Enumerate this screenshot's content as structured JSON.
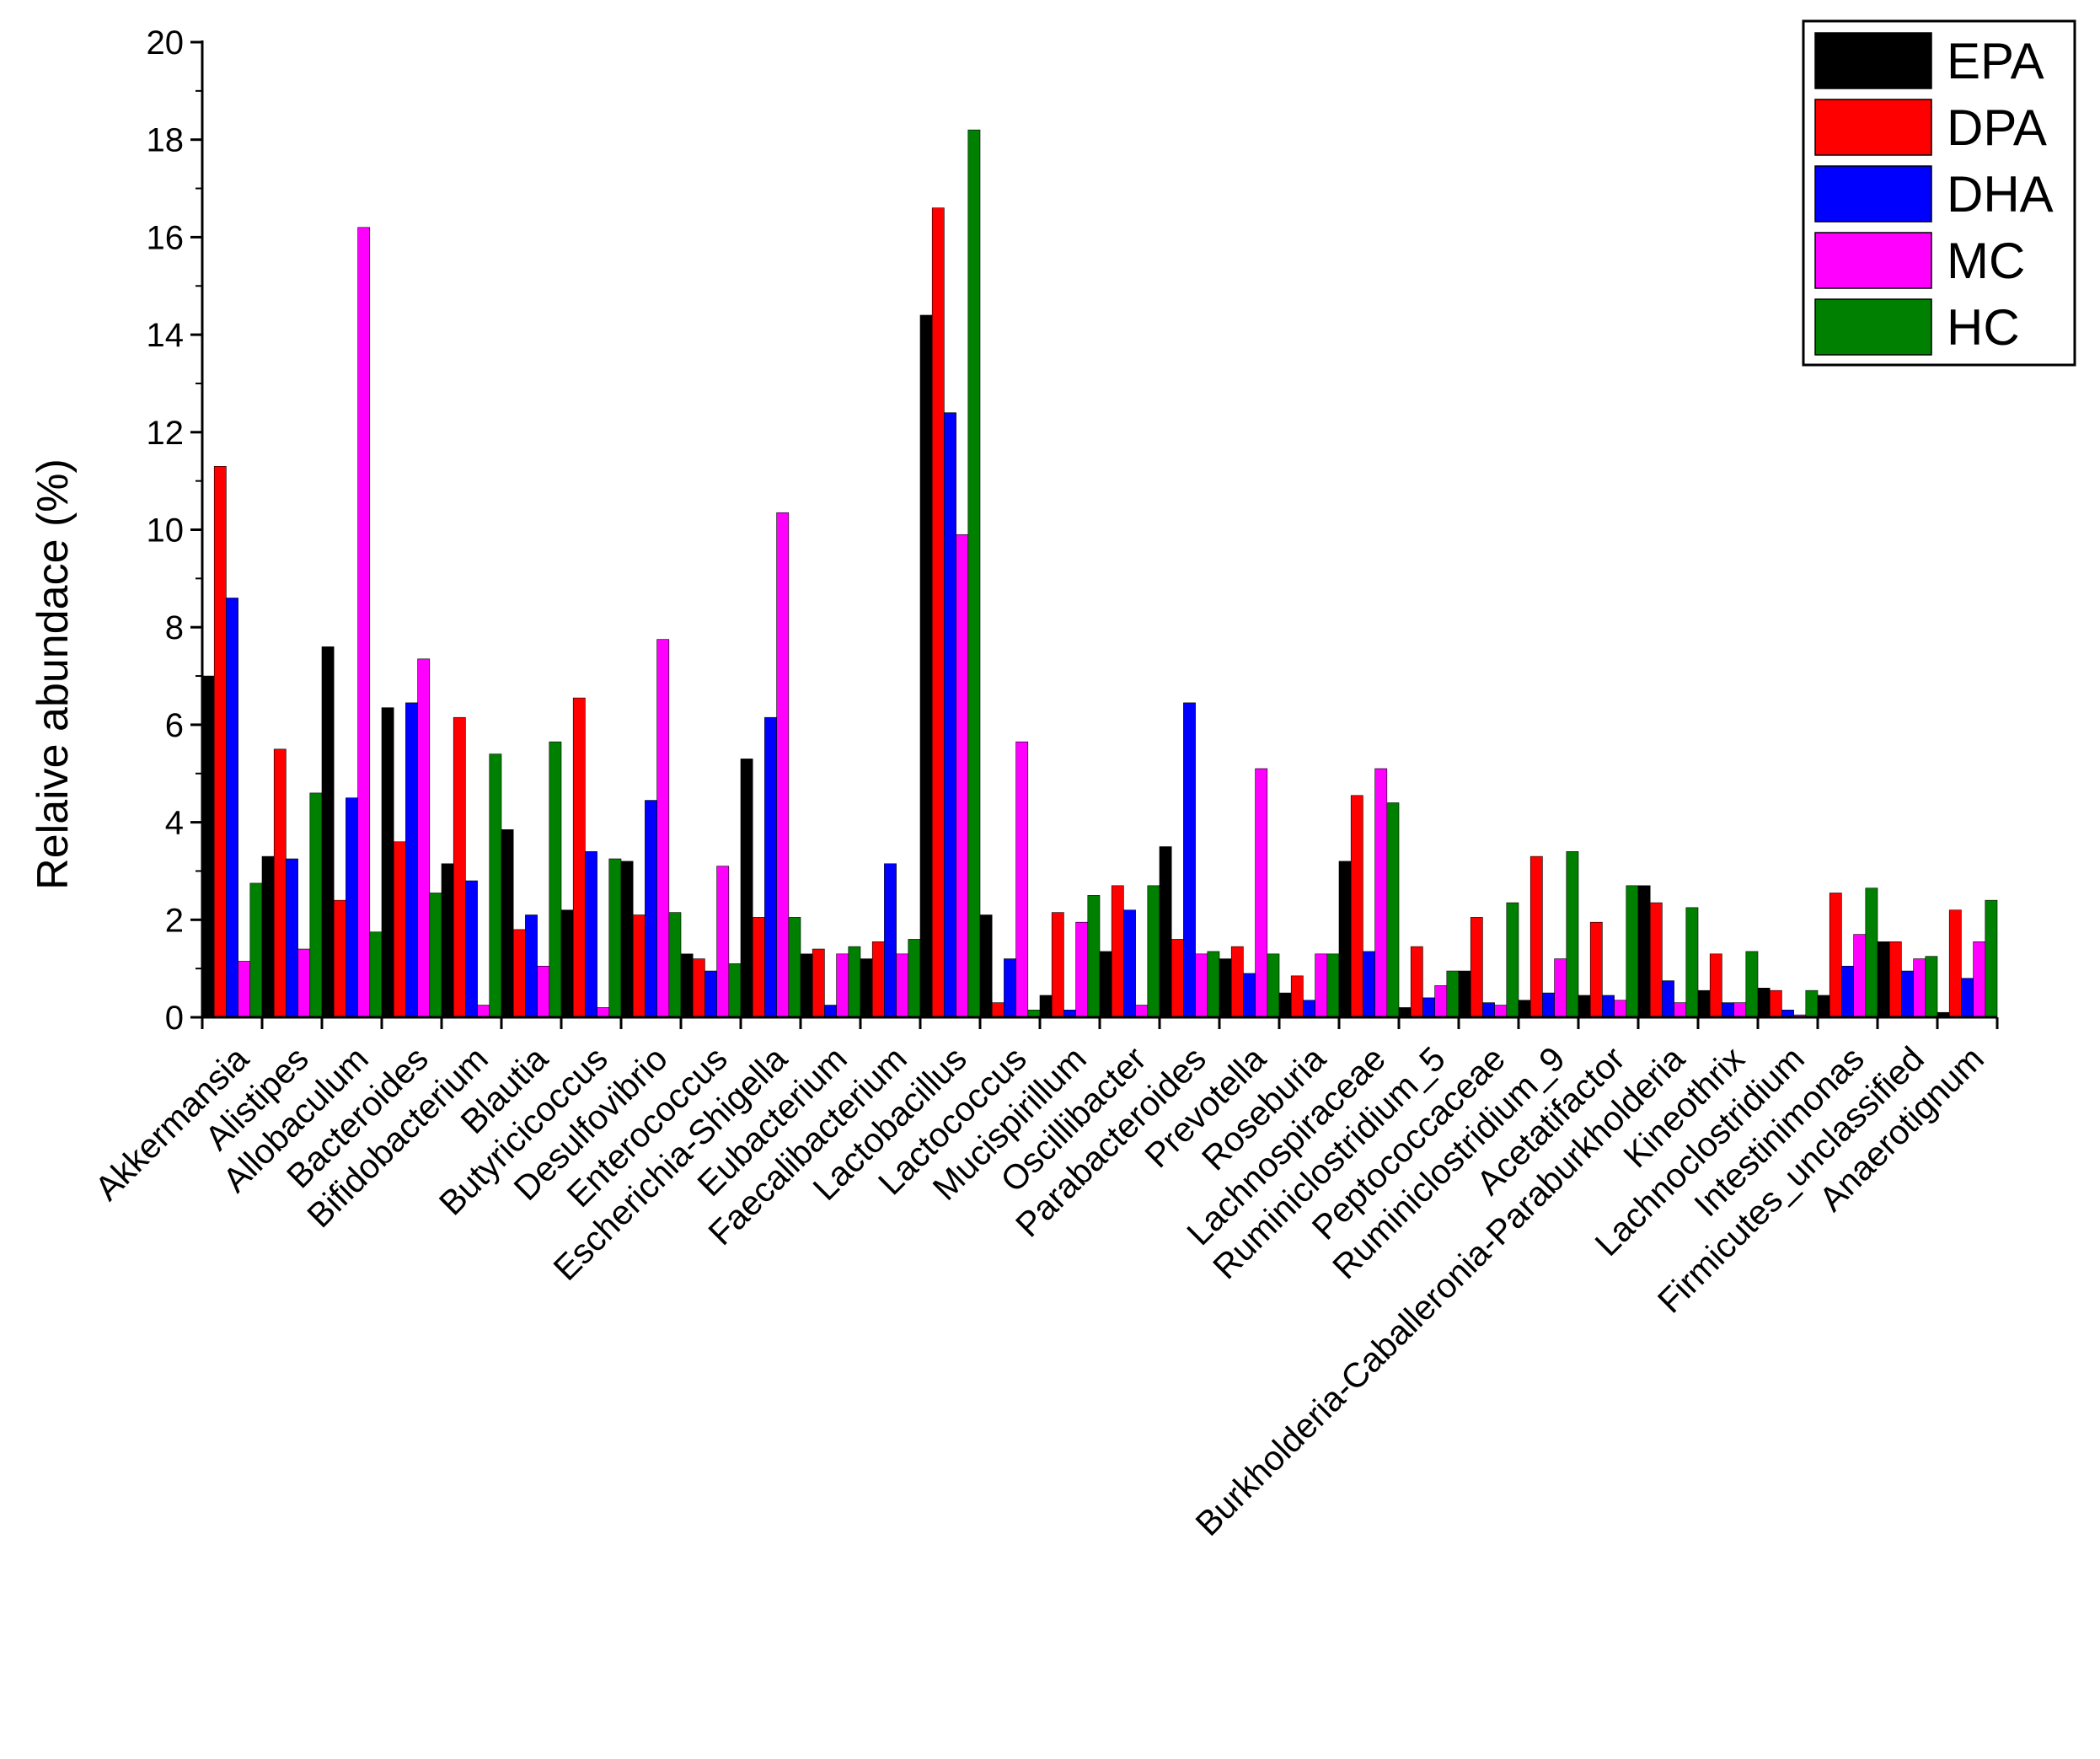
{
  "chart_data": {
    "type": "bar",
    "title": "",
    "xlabel": "",
    "ylabel": "Relaive abundace (%)",
    "ylim": [
      0,
      20
    ],
    "yticks": [
      0,
      2,
      4,
      6,
      8,
      10,
      12,
      14,
      16,
      18,
      20
    ],
    "legend_position": "top-right",
    "categories": [
      "Akkermansia",
      "Alistipes",
      "Allobaculum",
      "Bacteroides",
      "Bifidobacterium",
      "Blautia",
      "Butyricicoccus",
      "Desulfovibrio",
      "Enterococcus",
      "Escherichia-Shigella",
      "Eubacterium",
      "Faecalibacterium",
      "Lactobacillus",
      "Lactococcus",
      "Mucispirillum",
      "Oscillibacter",
      "Parabacteroides",
      "Prevotella",
      "Roseburia",
      "Lachnospiraceae",
      "Ruminiclostridium_5",
      "Peptococcaceae",
      "Ruminiclostridium_9",
      "Acetatifactor",
      "Burkholderia-Caballeronia-Paraburkholderia",
      "Kineothrix",
      "Lachnoclostridium",
      "Intestinimonas",
      "Firmicutes_unclassified",
      "Anaerotignum"
    ],
    "series": [
      {
        "name": "EPA",
        "color": "#000000",
        "values": [
          7.0,
          3.3,
          7.6,
          6.35,
          3.15,
          3.85,
          2.2,
          3.2,
          1.3,
          5.3,
          1.3,
          1.2,
          14.4,
          2.1,
          0.45,
          1.35,
          3.5,
          1.2,
          0.5,
          3.2,
          0.2,
          0.95,
          0.35,
          0.45,
          2.7,
          0.55,
          0.6,
          0.45,
          1.55,
          0.1
        ]
      },
      {
        "name": "DPA",
        "color": "#ff0000",
        "values": [
          11.3,
          5.5,
          2.4,
          3.6,
          6.15,
          1.8,
          6.55,
          2.1,
          1.2,
          2.05,
          1.4,
          1.55,
          16.6,
          0.3,
          2.15,
          2.7,
          1.6,
          1.45,
          0.85,
          4.55,
          1.45,
          2.05,
          3.3,
          1.95,
          2.35,
          1.3,
          0.55,
          2.55,
          1.55,
          2.2
        ]
      },
      {
        "name": "DHA",
        "color": "#0000ff",
        "values": [
          8.6,
          3.25,
          4.5,
          6.45,
          2.8,
          2.1,
          3.4,
          4.45,
          0.95,
          6.15,
          0.25,
          3.15,
          12.4,
          1.2,
          0.15,
          2.2,
          6.45,
          0.9,
          0.35,
          1.35,
          0.4,
          0.3,
          0.5,
          0.45,
          0.75,
          0.3,
          0.15,
          1.05,
          0.95,
          0.8
        ]
      },
      {
        "name": "MC",
        "color": "#ff00ff",
        "values": [
          1.15,
          1.4,
          16.2,
          7.35,
          0.25,
          1.05,
          0.2,
          7.75,
          3.1,
          10.35,
          1.3,
          1.3,
          9.9,
          5.65,
          1.95,
          0.25,
          1.3,
          5.1,
          1.3,
          5.1,
          0.65,
          0.25,
          1.2,
          0.35,
          0.3,
          0.3,
          0.05,
          1.7,
          1.2,
          1.55
        ]
      },
      {
        "name": "HC",
        "color": "#008000",
        "values": [
          2.75,
          4.6,
          1.75,
          2.55,
          5.4,
          5.65,
          3.25,
          2.15,
          1.1,
          2.05,
          1.45,
          1.6,
          18.2,
          0.15,
          2.5,
          2.7,
          1.35,
          1.3,
          1.3,
          4.4,
          0.95,
          2.35,
          3.4,
          2.7,
          2.25,
          1.35,
          0.55,
          2.65,
          1.25,
          2.4
        ]
      }
    ]
  }
}
